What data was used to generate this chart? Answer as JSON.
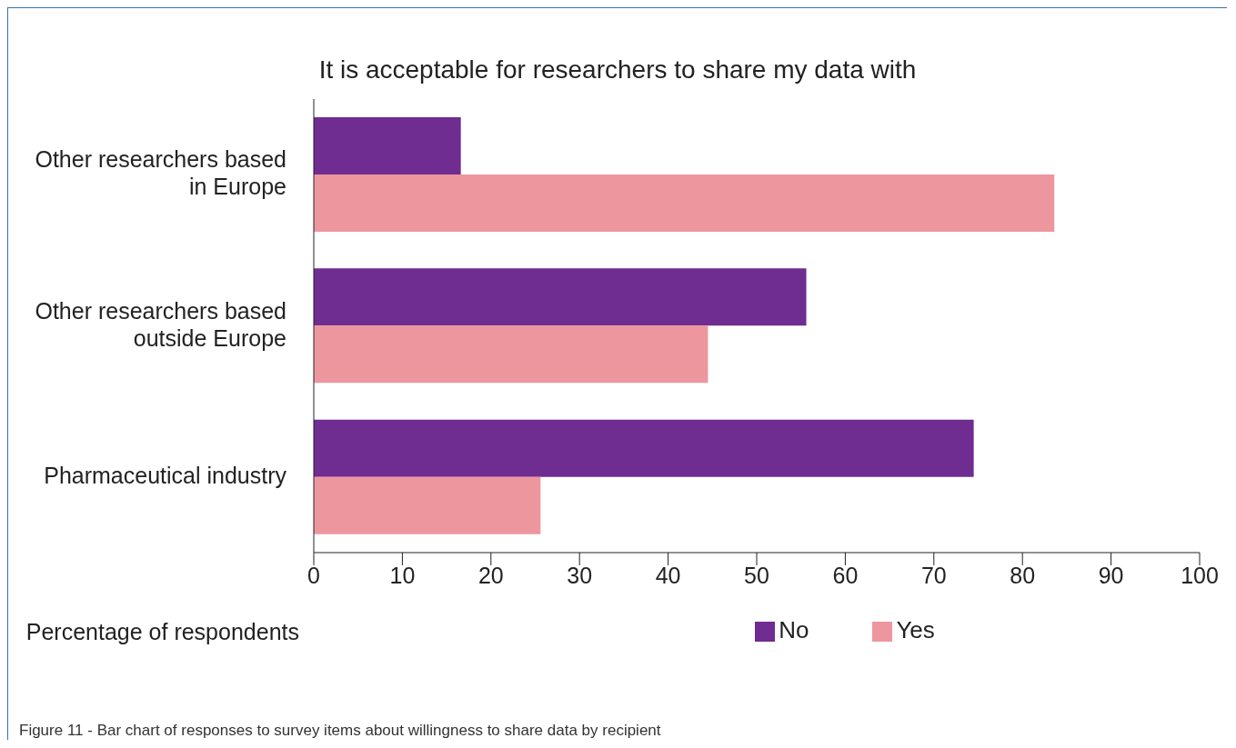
{
  "chart_data": {
    "type": "bar",
    "orientation": "horizontal",
    "title": "It is acceptable for researchers to share my data with",
    "xlabel": "Percentage of respondents",
    "categories": [
      "Other researchers based in Europe",
      "Other researchers based outside Europe",
      "Pharmaceutical industry"
    ],
    "series": [
      {
        "name": "No",
        "color": "#6f2c91",
        "values": [
          16.6,
          55.6,
          74.5
        ]
      },
      {
        "name": "Yes",
        "color": "#ed969e",
        "values": [
          83.6,
          44.5,
          25.6
        ]
      }
    ],
    "xlim": [
      0,
      100
    ],
    "xticks": [
      0,
      10,
      20,
      30,
      40,
      50,
      60,
      70,
      80,
      90,
      100
    ],
    "grid": false,
    "legend": "bottom",
    "annotations": [
      "Figure 11 - Bar chart of responses to survey items about willingness to share data by recipient"
    ]
  }
}
